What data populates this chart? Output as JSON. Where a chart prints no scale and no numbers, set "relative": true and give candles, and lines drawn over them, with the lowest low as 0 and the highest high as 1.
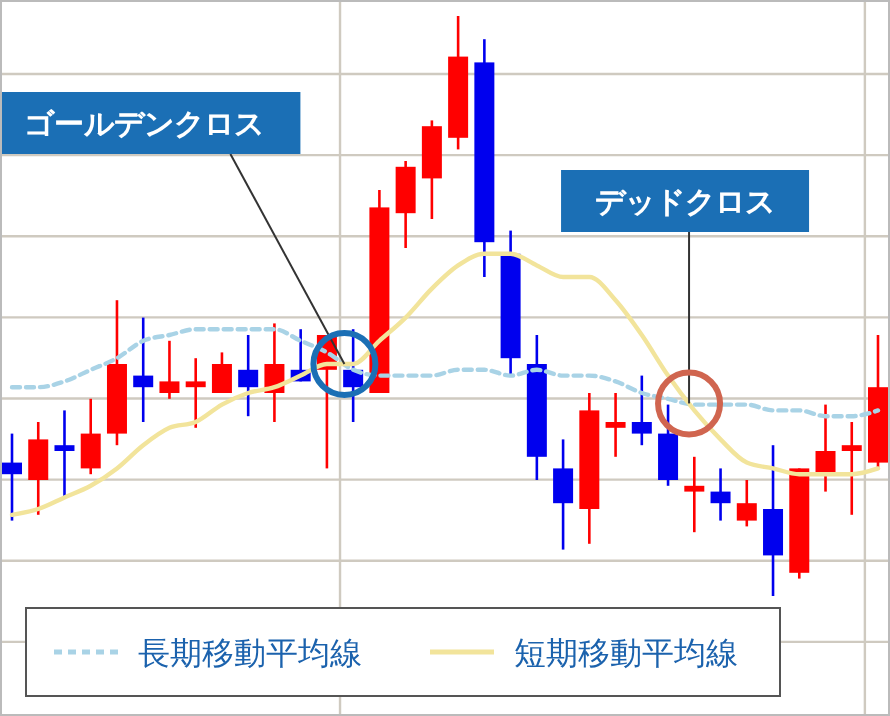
{
  "chart_data": {
    "type": "candlestick",
    "relative": true,
    "grid": true,
    "legend": "bottom",
    "categories": [
      null,
      null,
      null,
      null,
      null,
      null,
      null,
      null,
      null,
      null,
      null,
      null,
      null,
      null,
      null,
      null,
      null,
      null,
      null,
      null,
      null,
      null,
      null,
      null,
      null,
      null,
      null,
      null,
      null,
      null,
      null,
      null,
      null,
      null
    ],
    "ohlc": [
      [
        0.23,
        0.28,
        0.13,
        0.21
      ],
      [
        0.2,
        0.3,
        0.14,
        0.27
      ],
      [
        0.26,
        0.32,
        0.17,
        0.25
      ],
      [
        0.22,
        0.34,
        0.21,
        0.28
      ],
      [
        0.28,
        0.51,
        0.26,
        0.4
      ],
      [
        0.38,
        0.48,
        0.3,
        0.36
      ],
      [
        0.35,
        0.44,
        0.34,
        0.37
      ],
      [
        0.36,
        0.41,
        0.29,
        0.37
      ],
      [
        0.35,
        0.42,
        0.35,
        0.4
      ],
      [
        0.39,
        0.45,
        0.31,
        0.36
      ],
      [
        0.35,
        0.47,
        0.3,
        0.4
      ],
      [
        0.39,
        0.46,
        0.37,
        0.37
      ],
      [
        0.39,
        0.45,
        0.22,
        0.45
      ],
      [
        0.39,
        0.46,
        0.3,
        0.36
      ],
      [
        0.35,
        0.7,
        0.35,
        0.67
      ],
      [
        0.66,
        0.75,
        0.6,
        0.74
      ],
      [
        0.72,
        0.82,
        0.65,
        0.81
      ],
      [
        0.79,
        1.0,
        0.77,
        0.93
      ],
      [
        0.92,
        0.96,
        0.55,
        0.61
      ],
      [
        0.59,
        0.63,
        0.38,
        0.41
      ],
      [
        0.4,
        0.45,
        0.2,
        0.24
      ],
      [
        0.22,
        0.27,
        0.08,
        0.16
      ],
      [
        0.15,
        0.35,
        0.09,
        0.32
      ],
      [
        0.29,
        0.35,
        0.24,
        0.3
      ],
      [
        0.3,
        0.38,
        0.26,
        0.28
      ],
      [
        0.28,
        0.33,
        0.19,
        0.2
      ],
      [
        0.18,
        0.24,
        0.11,
        0.19
      ],
      [
        0.18,
        0.22,
        0.13,
        0.16
      ],
      [
        0.13,
        0.2,
        0.12,
        0.16
      ],
      [
        0.15,
        0.26,
        0,
        0.07
      ],
      [
        0.04,
        0.22,
        0.03,
        0.22
      ],
      [
        0.21,
        0.33,
        0.18,
        0.25
      ],
      [
        0.25,
        0.3,
        0.14,
        0.26
      ],
      [
        0.23,
        0.45,
        0.22,
        0.36
      ]
    ],
    "colors": [
      "#0000ee",
      "#ff0000",
      "#0000ee",
      "#ff0000",
      "#ff0000",
      "#0000ee",
      "#ff0000",
      "#ff0000",
      "#ff0000",
      "#0000ee",
      "#ff0000",
      "#0000ee",
      "#ff0000",
      "#0000ee",
      "#ff0000",
      "#ff0000",
      "#ff0000",
      "#ff0000",
      "#0000ee",
      "#0000ee",
      "#0000ee",
      "#0000ee",
      "#ff0000",
      "#ff0000",
      "#0000ee",
      "#0000ee",
      "#ff0000",
      "#0000ee",
      "#ff0000",
      "#0000ee",
      "#ff0000",
      "#ff0000",
      "#ff0000",
      "#ff0000"
    ],
    "series": [
      {
        "name": "長期移動平均線",
        "type": "line",
        "line_style": "dashed",
        "color": "#a9d3e6",
        "values": [
          0.36,
          0.36,
          0.37,
          0.39,
          0.41,
          0.44,
          0.45,
          0.46,
          0.46,
          0.46,
          0.46,
          0.44,
          0.42,
          0.39,
          0.38,
          0.38,
          0.38,
          0.39,
          0.39,
          0.38,
          0.39,
          0.38,
          0.38,
          0.37,
          0.35,
          0.34,
          0.33,
          0.33,
          0.33,
          0.32,
          0.32,
          0.31,
          0.31,
          0.32
        ]
      },
      {
        "name": "短期移動平均線",
        "type": "line",
        "line_style": "solid",
        "color": "#f2e49b",
        "values": [
          0.14,
          0.15,
          0.17,
          0.19,
          0.22,
          0.26,
          0.29,
          0.3,
          0.33,
          0.35,
          0.36,
          0.38,
          0.4,
          0.4,
          0.44,
          0.48,
          0.53,
          0.57,
          0.59,
          0.59,
          0.57,
          0.55,
          0.55,
          0.51,
          0.45,
          0.38,
          0.32,
          0.27,
          0.23,
          0.22,
          0.21,
          0.21,
          0.21,
          0.22
        ]
      }
    ],
    "annotations": [
      "ゴールデンクロス",
      "デッドクロス"
    ]
  }
}
